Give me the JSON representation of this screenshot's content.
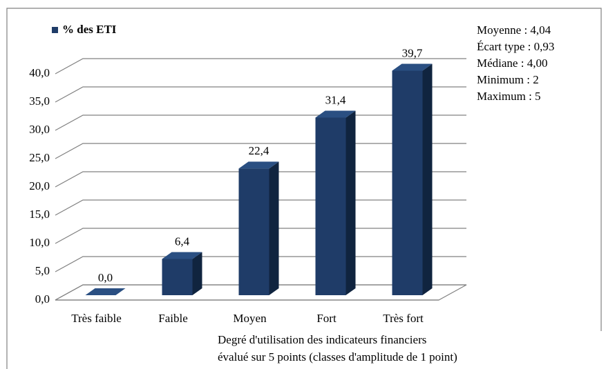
{
  "chart_data": {
    "type": "bar3d",
    "legend": "% des ETI",
    "series_color": "#1f3c68",
    "categories": [
      "Très faible",
      "Faible",
      "Moyen",
      "Fort",
      "Très fort"
    ],
    "values": [
      0,
      6.4,
      22.4,
      31.4,
      39.7
    ],
    "value_labels": [
      "0,0",
      "6,4",
      "22,4",
      "31,4",
      "39,7"
    ],
    "ylim": [
      0,
      40
    ],
    "yticks": [
      {
        "value": 0,
        "label": "0,0"
      },
      {
        "value": 5,
        "label": "5,0"
      },
      {
        "value": 10,
        "label": "10,0"
      },
      {
        "value": 15,
        "label": "15,0"
      },
      {
        "value": 20,
        "label": "20,0"
      },
      {
        "value": 25,
        "label": "25,0"
      },
      {
        "value": 30,
        "label": "30,0"
      },
      {
        "value": 35,
        "label": "35,0"
      },
      {
        "value": 40,
        "label": "40,0"
      }
    ],
    "grid": true,
    "annotations": [
      "Moyenne : 4,04",
      "Écart type : 0,93",
      "Médiane : 4,00",
      "Minimum : 2",
      "Maximum : 5"
    ],
    "xlabel": [
      "Degré d'utilisation des indicateurs financiers",
      "évalué sur  5 points (classes d'amplitude de 1 point)"
    ]
  }
}
